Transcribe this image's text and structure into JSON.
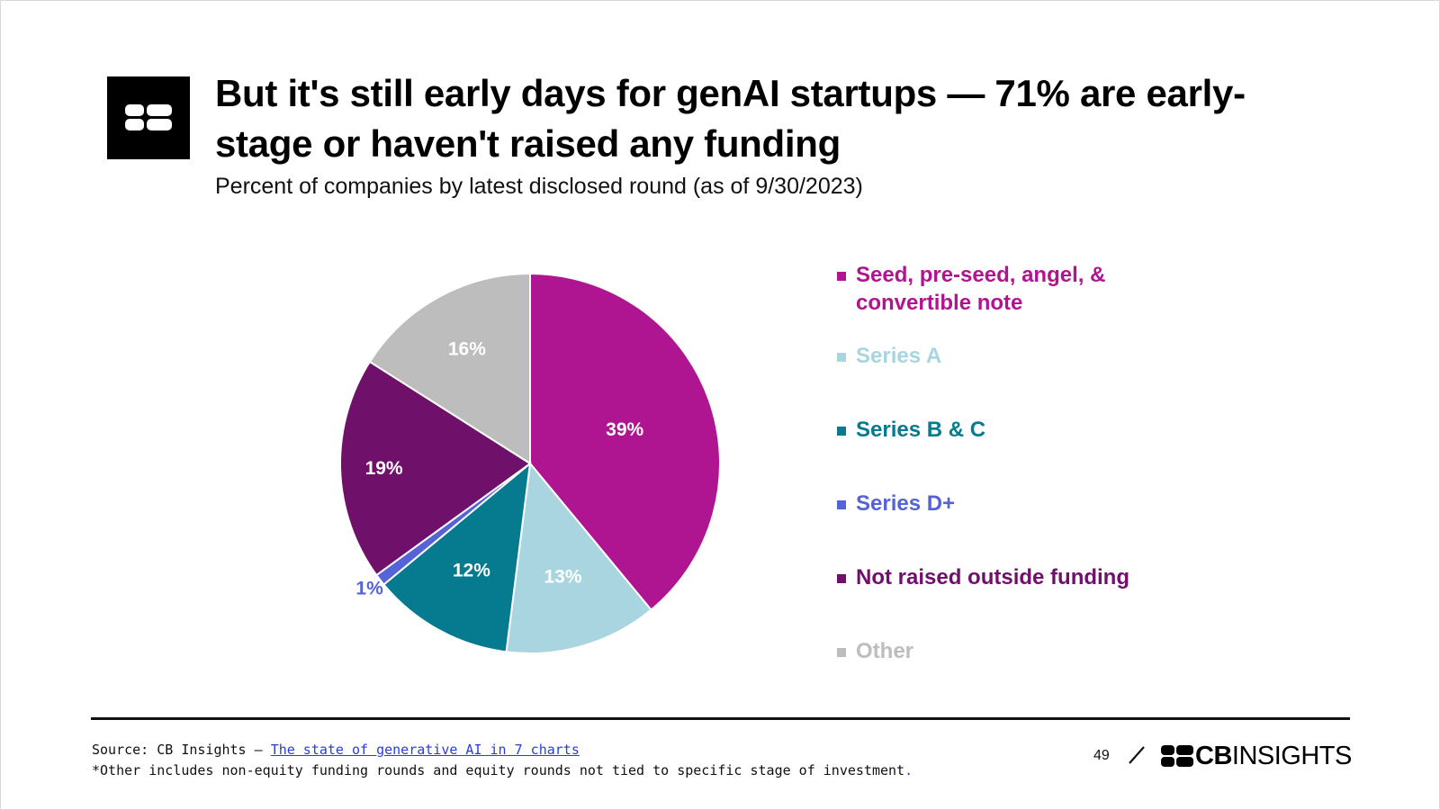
{
  "header": {
    "title": "But it's still early days for genAI startups — 71% are early-stage or haven't raised any funding",
    "subtitle": "Percent of companies by latest disclosed round (as of 9/30/2023)",
    "logo_icon": "cb-logo-icon"
  },
  "chart_data": {
    "type": "pie",
    "start_angle_deg": 0,
    "direction": "clockwise",
    "slices": [
      {
        "label": "Seed, pre-seed, angel, & convertible note",
        "value": 39,
        "value_label": "39%",
        "color": "#b01591",
        "label_color": "#ffffff"
      },
      {
        "label": "Series A",
        "value": 13,
        "value_label": "13%",
        "color": "#a8d5df",
        "label_color": "#ffffff"
      },
      {
        "label": "Series B & C",
        "value": 12,
        "value_label": "12%",
        "color": "#067a8f",
        "label_color": "#ffffff"
      },
      {
        "label": "Series D+",
        "value": 1,
        "value_label": "1%",
        "color": "#5563d6",
        "label_color": "#5563d6"
      },
      {
        "label": "Not raised outside funding",
        "value": 19,
        "value_label": "19%",
        "color": "#6f106a",
        "label_color": "#ffffff"
      },
      {
        "label": "Other",
        "value": 16,
        "value_label": "16%",
        "color": "#bdbdbd",
        "label_color": "#ffffff"
      }
    ],
    "legend": {
      "placement": "right",
      "items": [
        {
          "label": "Seed, pre-seed, angel, & convertible note",
          "color": "#b01591"
        },
        {
          "label": "Series A",
          "color": "#a8d5df"
        },
        {
          "label": "Series B & C",
          "color": "#067a8f"
        },
        {
          "label": "Series D+",
          "color": "#5563d6"
        },
        {
          "label": "Not raised outside funding",
          "color": "#6f106a"
        },
        {
          "label": "Other",
          "color": "#bdbdbd"
        }
      ]
    }
  },
  "footer": {
    "source_prefix": "Source: CB Insights – ",
    "source_link": "The state of generative AI in 7 charts",
    "note_text": "*Other includes non-equity funding rounds and equity rounds not tied to specific stage of investment",
    "note_period": ".",
    "page_number": "49",
    "brand_bold": "CB",
    "brand_light": "INSIGHTS",
    "brand_icon": "cb-logo-icon"
  }
}
